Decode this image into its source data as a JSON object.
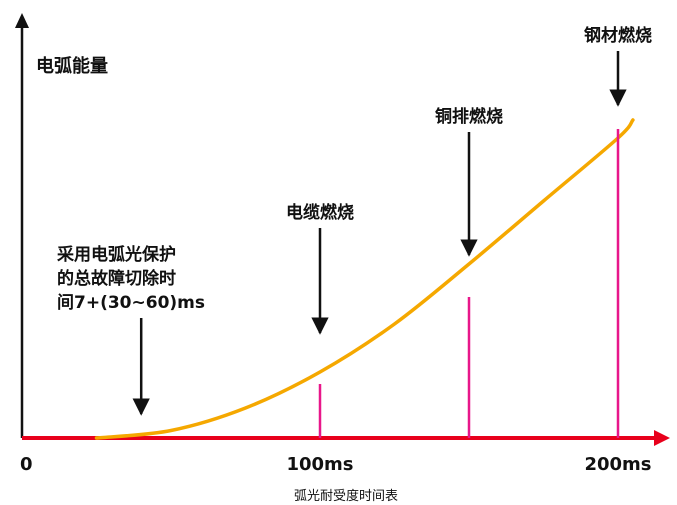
{
  "chart_data": {
    "type": "line",
    "title": "",
    "caption": "弧光耐受度时间表",
    "ylabel": "电弧能量",
    "xlabel": "",
    "x_tick_labels": [
      "0",
      "100ms",
      "200ms"
    ],
    "x_ticks": [
      0,
      100,
      200
    ],
    "xlim": [
      0,
      210
    ],
    "ylim": [
      0,
      100
    ],
    "grid": false,
    "legend": "none",
    "series": [
      {
        "values_x": [
          25,
          50,
          75,
          100,
          125,
          150,
          175,
          200,
          205
        ],
        "values_y": [
          0,
          2.5,
          10,
          22,
          38,
          58,
          79,
          100,
          106
        ]
      }
    ],
    "markers": [
      {
        "x": 100,
        "y": 18
      },
      {
        "x": 150,
        "y": 47
      },
      {
        "x": 200,
        "y": 103
      }
    ],
    "annotations": [
      {
        "lines": [
          "采用电弧光保护",
          "的总故障切除时",
          "间7+(30~60)ms"
        ],
        "x": 40,
        "arrow_from_y": 40,
        "arrow_to_y": 8
      },
      {
        "lines": [
          "电缆燃烧"
        ],
        "x": 100,
        "arrow_from_y": 70,
        "arrow_to_y": 35
      },
      {
        "lines": [
          "铜排燃烧"
        ],
        "x": 150,
        "arrow_from_y": 102,
        "arrow_to_y": 61
      },
      {
        "lines": [
          "钢材燃烧"
        ],
        "x": 200,
        "arrow_from_y": 129,
        "arrow_to_y": 111
      }
    ]
  },
  "colors": {
    "curve": "#F5A800",
    "marker": "#E8178A",
    "x_axis": "#E8001C",
    "y_axis": "#111111",
    "caption": "#2E86C1",
    "text": "#111111"
  }
}
